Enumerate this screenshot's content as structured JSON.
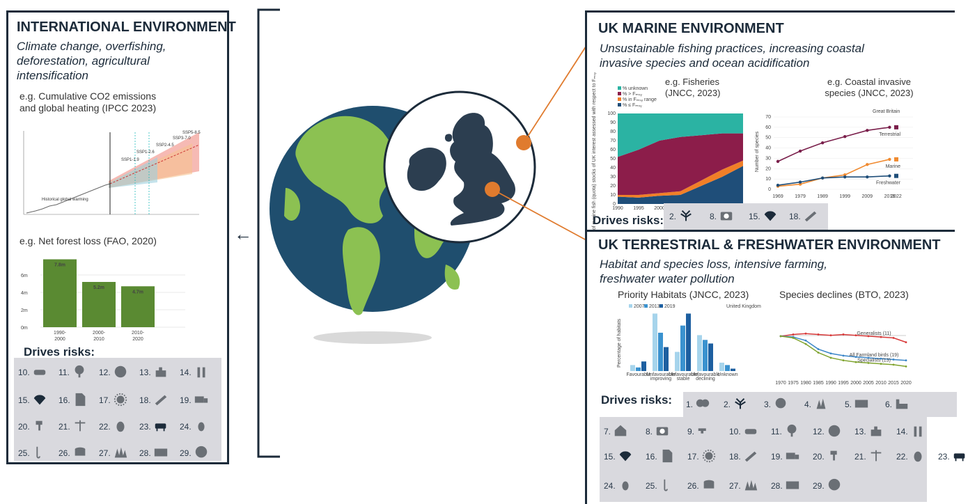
{
  "international": {
    "title": "INTERNATIONAL ENVIRONMENT",
    "subtitle": "Climate change, overfishing, deforestation, agricultural intensification",
    "co2_caption": "e.g. Cumulative CO2 emissions and global heating (IPCC 2023)",
    "co2_labels": [
      "SSP5-8.5",
      "SSP3-7.0",
      "SSP2-4.5",
      "SSP1-2.6",
      "SSP1-1.9",
      "Historical global warming"
    ],
    "forest_caption": "e.g. Net forest loss (FAO, 2020)",
    "drives": "Drives risks:",
    "risks": [
      "10.",
      "11.",
      "12.",
      "13.",
      "14.",
      "15.",
      "16.",
      "17.",
      "18.",
      "19.",
      "20.",
      "21.",
      "22.",
      "23.",
      "24.",
      "25.",
      "26.",
      "27.",
      "28.",
      "29."
    ]
  },
  "marine": {
    "title": "UK MARINE ENVIRONMENT",
    "subtitle": "Unsustainable fishing practices, increasing coastal invasive species and ocean acidification",
    "fish_caption": "e.g. Fisheries (JNCC, 2023)",
    "invasive_caption": "e.g. Coastal invasive species (JNCC, 2023)",
    "drives": "Drives risks:",
    "risks": [
      "2.",
      "8.",
      "15.",
      "18."
    ]
  },
  "terrestrial": {
    "title": "UK TERRESTRIAL & FRESHWATER ENVIRONMENT",
    "subtitle": "Habitat and species loss, intensive farming, freshwater water pollution",
    "habitat_caption": "Priority Habitats (JNCC, 2023)",
    "species_caption": "Species declines (BTO, 2023)",
    "drives": "Drives risks:",
    "risks": [
      "1.",
      "2.",
      "3.",
      "4.",
      "5.",
      "6.",
      "7.",
      "8.",
      "9.",
      "10.",
      "11.",
      "12.",
      "13.",
      "14.",
      "15.",
      "16.",
      "17.",
      "18.",
      "19.",
      "20.",
      "21.",
      "22.",
      "23.",
      "24.",
      "25.",
      "26.",
      "27.",
      "28.",
      "29."
    ]
  },
  "chart_data": [
    {
      "type": "bar",
      "categories": [
        "1990-2000",
        "2000-2010",
        "2010-2020"
      ],
      "values": [
        7.8,
        5.2,
        4.7
      ],
      "data_labels": [
        "7.8m",
        "5.2m",
        "4.7m"
      ],
      "yticks": [
        "0m",
        "2m",
        "4m",
        "6m"
      ],
      "ylim": [
        0,
        8
      ],
      "color": "#5a8a32"
    },
    {
      "type": "area",
      "x": [
        1990,
        1995,
        2000,
        2005,
        2010,
        2015,
        2020
      ],
      "xlim": [
        1990,
        2020
      ],
      "ylim": [
        0,
        100
      ],
      "ylabel": "Status of marine fish (quota) stocks of UK interest assessed with respect to Fₘₛᵧ",
      "yticks": [
        "0",
        "10",
        "20",
        "30",
        "40",
        "50",
        "60",
        "70",
        "80",
        "90",
        "100"
      ],
      "series": [
        {
          "name": "% unknown",
          "color": "#2bb3a3",
          "values": [
            48,
            40,
            30,
            26,
            24,
            22,
            22
          ]
        },
        {
          "name": "% > Fₘₛᵧ",
          "color": "#8c1d4a",
          "values": [
            42,
            50,
            58,
            60,
            50,
            40,
            30
          ]
        },
        {
          "name": "% in Fₘₛᵧ range",
          "color": "#f07f28",
          "values": [
            2,
            3,
            3,
            4,
            6,
            8,
            6
          ]
        },
        {
          "name": "% ≤ Fₘₛᵧ",
          "color": "#1f4e79",
          "values": [
            8,
            7,
            9,
            10,
            20,
            30,
            42
          ]
        }
      ]
    },
    {
      "type": "line",
      "title": "Great Britain",
      "ylabel": "Number of species",
      "x": [
        1969,
        1979,
        1989,
        1999,
        2009,
        2019
      ],
      "x_ticks": [
        "1969",
        "1979",
        "1989",
        "1999",
        "2009",
        "2019",
        "2022"
      ],
      "ylim": [
        0,
        70
      ],
      "yticks": [
        "0",
        "10",
        "20",
        "30",
        "40",
        "50",
        "60",
        "70"
      ],
      "series": [
        {
          "name": "Terrestrial",
          "color": "#7a1f4b",
          "values": [
            27,
            37,
            45,
            51,
            57,
            60
          ]
        },
        {
          "name": "Marine",
          "color": "#f08a30",
          "values": [
            3,
            5,
            11,
            14,
            24,
            29
          ]
        },
        {
          "name": "Freshwater",
          "color": "#1f4e79",
          "values": [
            4,
            7,
            11,
            12,
            12,
            13
          ]
        }
      ]
    },
    {
      "type": "bar",
      "title": "United Kingdom",
      "ylabel": "Percentage of habitats",
      "categories": [
        "Favourable",
        "Unfavourable improving",
        "Unfavourable stable",
        "Unfavourable declining",
        "Unknown"
      ],
      "series": [
        {
          "name": "2007",
          "color": "#a6d4ec",
          "values": [
            5,
            48,
            16,
            30,
            7
          ]
        },
        {
          "name": "2013",
          "color": "#3a92cf",
          "values": [
            3,
            32,
            38,
            26,
            5
          ]
        },
        {
          "name": "2019",
          "color": "#1d5fa0",
          "values": [
            8,
            20,
            48,
            23,
            2
          ]
        }
      ],
      "ylim": [
        0,
        50
      ]
    },
    {
      "type": "line",
      "x_ticks": [
        "1970",
        "1975",
        "1980",
        "1985",
        "1990",
        "1995",
        "2000",
        "2005",
        "2010",
        "2015",
        "2020"
      ],
      "series": [
        {
          "name": "Generalists (11)",
          "color": "#d83a3a",
          "values": [
            100,
            104,
            106,
            104,
            102,
            104,
            102,
            100,
            98,
            96,
            86
          ]
        },
        {
          "name": "All Farmland birds (19)",
          "color": "#3a86c8",
          "values": [
            100,
            98,
            90,
            70,
            60,
            55,
            52,
            50,
            48,
            46,
            44
          ]
        },
        {
          "name": "Specialists (13)",
          "color": "#7fa32e",
          "values": [
            100,
            96,
            82,
            62,
            50,
            44,
            40,
            38,
            36,
            34,
            30
          ]
        }
      ]
    }
  ]
}
